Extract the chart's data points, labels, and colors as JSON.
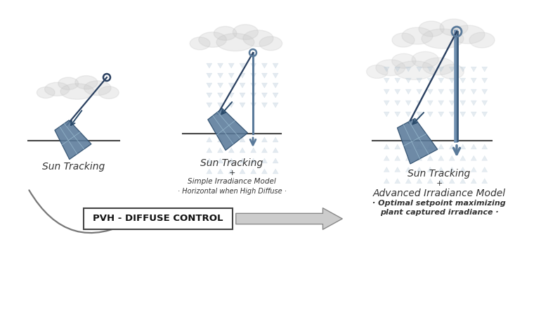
{
  "bg_color": "#ffffff",
  "panel_color": "#5a7a9a",
  "panel_light": "#9abcd0",
  "panel_edge": "#2a4a6a",
  "ground_color": "#444444",
  "pole_color": "#5a7a9a",
  "arm_color": "#2a4060",
  "diffuse_color": "#aabccc",
  "text_color": "#333333",
  "pvh_text_color": "#111111",
  "curve_arrow_color": "#666666",
  "big_arrow_color": "#aaaaaa",
  "big_arrow_edge": "#777777",
  "label1": "Sun Tracking",
  "label2_line1": "Sun Tracking",
  "label2_line2": "+",
  "label2_line3": "Simple Irradiance Model",
  "label2_line4": "· Horizontal when High Diffuse ·",
  "label3_line1": "Sun Tracking",
  "label3_line2": "+",
  "label3_line3": "Advanced Irradiance Model",
  "label3_line4": "· Optimal setpoint maximizing",
  "label3_line5": "plant captured irradiance ·",
  "pvh_label": "PVH - DIFFUSE CONTROL",
  "figsize": [
    7.7,
    4.45
  ],
  "dpi": 100
}
